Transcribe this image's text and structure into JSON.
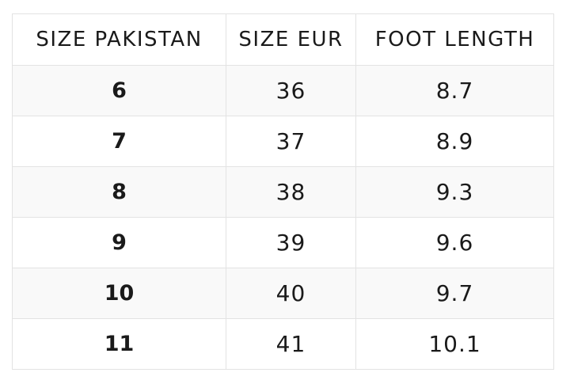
{
  "table": {
    "headers": [
      "SIZE PAKISTAN",
      "SIZE EUR",
      "FOOT LENGTH"
    ],
    "rows": [
      [
        "6",
        "36",
        "8.7"
      ],
      [
        "7",
        "37",
        "8.9"
      ],
      [
        "8",
        "38",
        "9.3"
      ],
      [
        "9",
        "39",
        "9.6"
      ],
      [
        "10",
        "40",
        "9.7"
      ],
      [
        "11",
        "41",
        "10.1"
      ]
    ]
  }
}
